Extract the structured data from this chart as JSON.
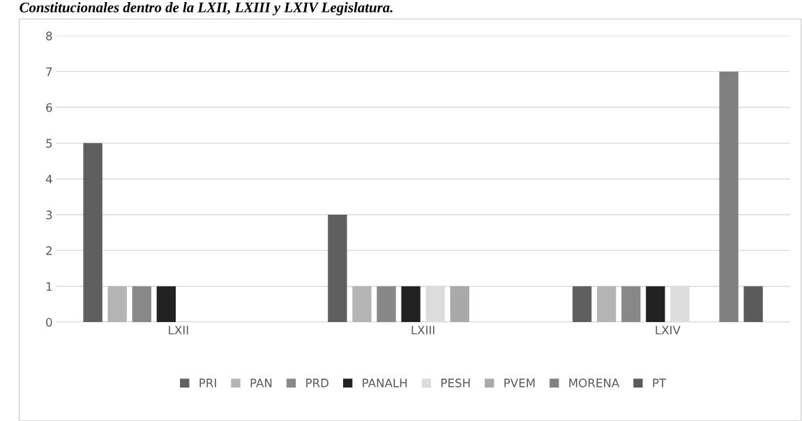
{
  "chart_data": {
    "type": "bar",
    "title": "Constitucionales dentro de la LXII, LXIII y LXIV Legislatura.",
    "categories": [
      "LXII",
      "LXIII",
      "LXIV"
    ],
    "series": [
      {
        "name": "PRI",
        "color": "#5f5f5f",
        "values": [
          5,
          3,
          1
        ]
      },
      {
        "name": "PAN",
        "color": "#b4b4b4",
        "values": [
          1,
          1,
          1
        ]
      },
      {
        "name": "PRD",
        "color": "#888888",
        "values": [
          1,
          1,
          1
        ]
      },
      {
        "name": "PANALH",
        "color": "#222222",
        "values": [
          1,
          1,
          1
        ]
      },
      {
        "name": "PESH",
        "color": "#dcdcdc",
        "values": [
          0,
          1,
          1
        ]
      },
      {
        "name": "PVEM",
        "color": "#a9a9a9",
        "values": [
          0,
          1,
          0
        ]
      },
      {
        "name": "MORENA",
        "color": "#808080",
        "values": [
          0,
          0,
          7
        ]
      },
      {
        "name": "PT",
        "color": "#5b5b5b",
        "values": [
          0,
          0,
          1
        ]
      }
    ],
    "ylim": [
      0,
      8
    ],
    "yticks": [
      0,
      1,
      2,
      3,
      4,
      5,
      6,
      7,
      8
    ],
    "grid": "y",
    "legend": "bottom"
  }
}
